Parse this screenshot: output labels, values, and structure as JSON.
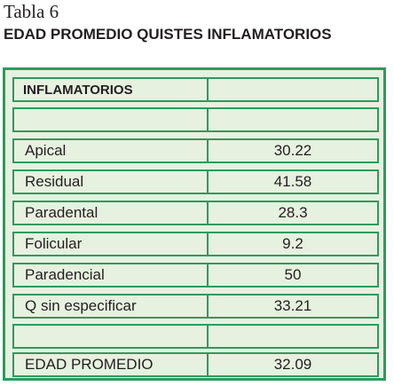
{
  "table_label": "Tabla 6",
  "table_title": "EDAD PROMEDIO QUISTES INFLAMATORIOS",
  "table": {
    "header": {
      "label": "INFLAMATORIOS",
      "value": ""
    },
    "rows": [
      {
        "label": "",
        "value": ""
      },
      {
        "label": "Apical",
        "value": "30.22"
      },
      {
        "label": "Residual",
        "value": "41.58"
      },
      {
        "label": "Paradental",
        "value": "28.3"
      },
      {
        "label": "Folicular",
        "value": "9.2"
      },
      {
        "label": "Paradencial",
        "value": "50"
      },
      {
        "label": "Q sin especificar",
        "value": "33.21"
      },
      {
        "label": "",
        "value": ""
      },
      {
        "label": "EDAD PROMEDIO",
        "value": "32.09"
      }
    ]
  },
  "colors": {
    "border": "#2e9a5e",
    "background": "#e6f1df",
    "text": "#231f20"
  }
}
